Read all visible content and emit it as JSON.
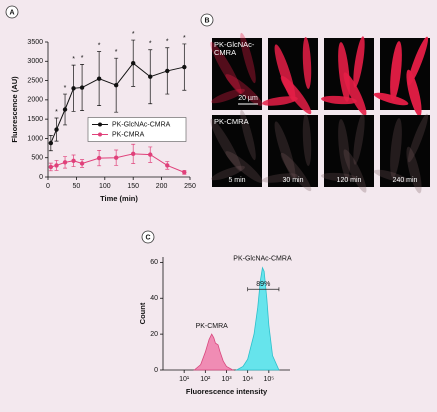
{
  "chart_data": [
    {
      "type": "line",
      "label": "A",
      "xlabel": "Time (min)",
      "ylabel": "Fluorescence (AU)",
      "x": [
        5,
        15,
        30,
        45,
        60,
        90,
        120,
        150,
        180,
        210,
        240
      ],
      "series": [
        {
          "name": "PK-GlcNAc-CMRA",
          "color": "#111111",
          "values": [
            880,
            1230,
            1750,
            2300,
            2320,
            2550,
            2380,
            2950,
            2600,
            2750,
            2850
          ],
          "errors": [
            200,
            300,
            400,
            600,
            600,
            700,
            700,
            600,
            700,
            600,
            600
          ]
        },
        {
          "name": "PK-CMRA",
          "color": "#e0407a",
          "values": [
            260,
            300,
            380,
            420,
            350,
            490,
            500,
            600,
            580,
            300,
            120
          ],
          "errors": [
            100,
            130,
            150,
            150,
            100,
            200,
            200,
            250,
            200,
            100,
            50
          ]
        }
      ],
      "xlim": [
        0,
        250
      ],
      "xticks": [
        0,
        50,
        100,
        150,
        200,
        250
      ],
      "ylim": [
        0,
        3500
      ],
      "yticks": [
        0,
        500,
        1000,
        1500,
        2000,
        2500,
        3000,
        3500
      ],
      "legend": "center right",
      "annotations": [
        {
          "text": "*",
          "x": 15
        },
        {
          "text": "*",
          "x": 30
        },
        {
          "text": "*",
          "x": 45
        },
        {
          "text": "*",
          "x": 60
        },
        {
          "text": "*",
          "x": 90
        },
        {
          "text": "*",
          "x": 120
        },
        {
          "text": "*",
          "x": 150
        },
        {
          "text": "*",
          "x": 180
        },
        {
          "text": "*",
          "x": 210
        },
        {
          "text": "*",
          "x": 240
        }
      ]
    },
    {
      "type": "area",
      "label": "C",
      "xlabel": "Fluorescence intensity",
      "ylabel": "Count",
      "xscale": "log",
      "series": [
        {
          "name": "PK-CMRA",
          "color": "#f08cb4",
          "edge": "#d8487e",
          "x": [
            30,
            60,
            100,
            150,
            200,
            250,
            300,
            400,
            500,
            700,
            1000,
            2000
          ],
          "values": [
            0,
            3,
            10,
            17,
            20,
            18,
            15,
            14,
            10,
            5,
            2,
            0
          ]
        },
        {
          "name": "PK-GlcNAc-CMRA",
          "color": "#66e4ec",
          "edge": "#2cc0cc",
          "x": [
            3000,
            6000,
            10000,
            20000,
            30000,
            40000,
            50000,
            60000,
            80000,
            100000,
            150000,
            300000
          ],
          "values": [
            0,
            2,
            6,
            20,
            35,
            50,
            57,
            55,
            40,
            25,
            8,
            0
          ]
        }
      ],
      "xlim": [
        1,
        1000000
      ],
      "xticks": [
        {
          "value": 10,
          "label": "10¹"
        },
        {
          "value": 100,
          "label": "10²"
        },
        {
          "value": 1000,
          "label": "10³"
        },
        {
          "value": 10000,
          "label": "10⁴"
        },
        {
          "value": 100000,
          "label": "10⁵"
        }
      ],
      "ylim": [
        0,
        63
      ],
      "yticks": [
        0,
        20,
        40,
        60
      ],
      "gate": {
        "label": "89%",
        "range": [
          10000,
          300000
        ],
        "level": 45
      }
    }
  ],
  "micrographs": {
    "label": "B",
    "rows": [
      "PK-GlcNAc-CMRA",
      "PK-CMRA"
    ],
    "times": [
      "5 min",
      "30 min",
      "120 min",
      "240 min"
    ],
    "scale_bar": "20 µm"
  }
}
